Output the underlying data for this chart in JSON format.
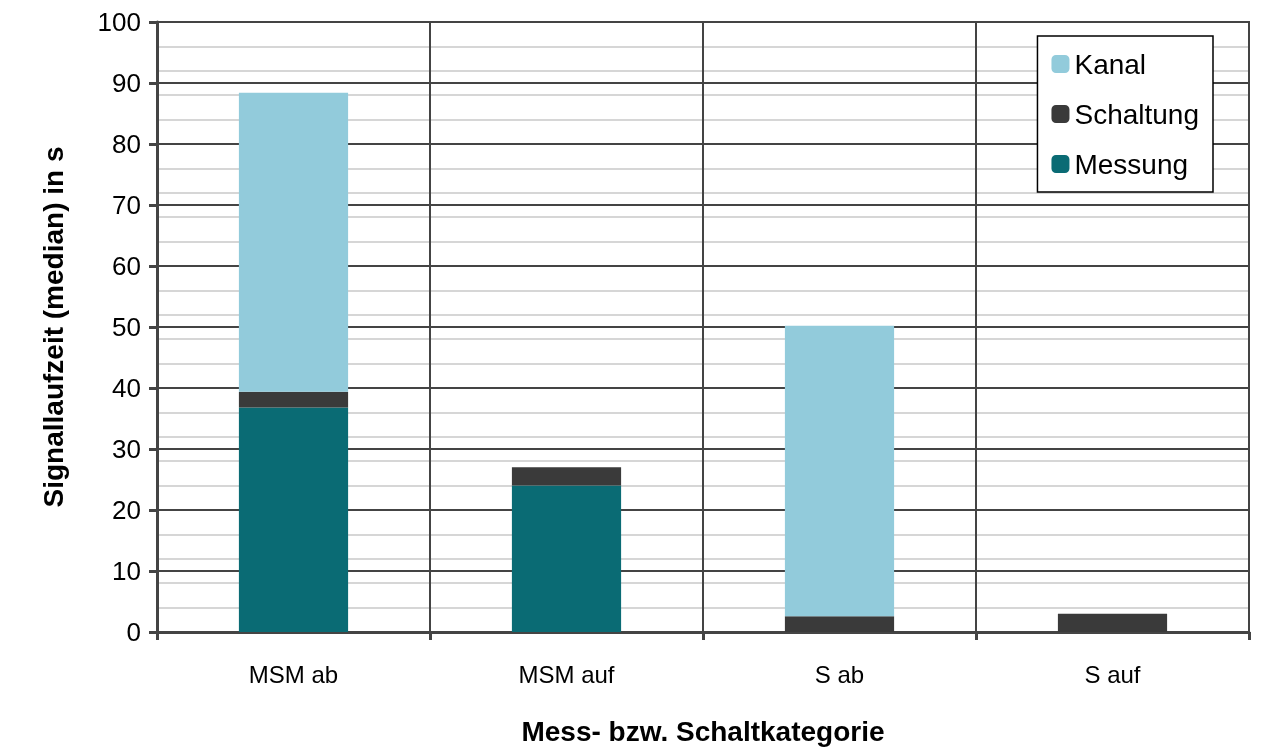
{
  "chart_data": {
    "type": "bar",
    "stacked": true,
    "xlabel": "Mess- bzw. Schaltkategorie",
    "ylabel": "Signallaufzeit (median) in s",
    "categories": [
      "MSM ab",
      "MSM auf",
      "S ab",
      "S auf"
    ],
    "series": [
      {
        "name": "Messung",
        "color": "#0a6b74",
        "values": [
          36.8,
          24.0,
          null,
          null
        ]
      },
      {
        "name": "Schaltung",
        "color": "#3a3a3a",
        "values": [
          2.6,
          3.0,
          2.6,
          3.0
        ]
      },
      {
        "name": "Kanal",
        "color": "#92cbdb",
        "values": [
          49.0,
          null,
          47.6,
          null
        ]
      }
    ],
    "ylim": [
      0,
      100
    ],
    "yticks": [
      0,
      10,
      20,
      30,
      40,
      50,
      60,
      70,
      80,
      90,
      100
    ],
    "grid": true,
    "legend": "top right"
  }
}
